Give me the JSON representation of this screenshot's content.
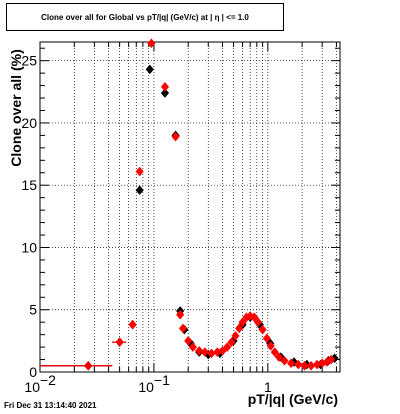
{
  "chart_data": {
    "type": "scatter",
    "title": "Clone  over all for Global vs pT/|q| (GeV/c) at |  η  | <= 1.0",
    "xlabel": "pT/|q| (GeV/c)",
    "ylabel": "Clone  over all (%)",
    "x_scale": "log",
    "xlim": [
      0.01,
      4.3
    ],
    "ylim": [
      0,
      26.5
    ],
    "grid": true,
    "y_ticks": [
      {
        "value": 0,
        "label": "0"
      },
      {
        "value": 5,
        "label": "5"
      },
      {
        "value": 10,
        "label": "10"
      },
      {
        "value": 15,
        "label": "15"
      },
      {
        "value": 20,
        "label": "20"
      },
      {
        "value": 25,
        "label": "25"
      }
    ],
    "x_ticks": [
      {
        "value": 0.01,
        "label": "10",
        "sup": "−2"
      },
      {
        "value": 0.1,
        "label": "10",
        "sup": "−1"
      },
      {
        "value": 1,
        "label": "1",
        "sup": ""
      }
    ],
    "series": [
      {
        "color": "#000000",
        "marker": "diamond",
        "points": [
          {
            "x": 0.0265,
            "y": 0.5,
            "xlo": 0.01,
            "xhi": 0.043
          },
          {
            "x": 0.05,
            "y": 2.4,
            "xlo": 0.043,
            "xhi": 0.057
          },
          {
            "x": 0.065,
            "y": 3.8
          },
          {
            "x": 0.075,
            "y": 14.6
          },
          {
            "x": 0.092,
            "y": 24.3
          },
          {
            "x": 0.125,
            "y": 22.4
          },
          {
            "x": 0.155,
            "y": 19.0
          },
          {
            "x": 0.17,
            "y": 4.9
          },
          {
            "x": 0.185,
            "y": 3.4
          },
          {
            "x": 0.21,
            "y": 2.3
          },
          {
            "x": 0.25,
            "y": 1.6
          },
          {
            "x": 0.3,
            "y": 1.4
          },
          {
            "x": 0.38,
            "y": 1.5
          },
          {
            "x": 0.5,
            "y": 2.5
          },
          {
            "x": 0.6,
            "y": 3.8
          },
          {
            "x": 0.7,
            "y": 4.4
          },
          {
            "x": 0.85,
            "y": 3.8
          },
          {
            "x": 1.05,
            "y": 2.3
          },
          {
            "x": 1.3,
            "y": 1.2
          },
          {
            "x": 1.7,
            "y": 0.8
          },
          {
            "x": 2.2,
            "y": 0.6
          },
          {
            "x": 2.9,
            "y": 0.6
          },
          {
            "x": 3.4,
            "y": 0.9
          },
          {
            "x": 3.85,
            "y": 1.1
          }
        ]
      },
      {
        "color": "#ff0000",
        "marker": "diamond",
        "points": [
          {
            "x": 0.0265,
            "y": 0.5,
            "xlo": 0.01,
            "xhi": 0.043
          },
          {
            "x": 0.05,
            "y": 2.4,
            "xlo": 0.043,
            "xhi": 0.057
          },
          {
            "x": 0.065,
            "y": 3.8
          },
          {
            "x": 0.075,
            "y": 16.1
          },
          {
            "x": 0.095,
            "y": 26.4
          },
          {
            "x": 0.125,
            "y": 22.9
          },
          {
            "x": 0.155,
            "y": 18.9
          },
          {
            "x": 0.17,
            "y": 4.6
          },
          {
            "x": 0.18,
            "y": 3.5
          },
          {
            "x": 0.2,
            "y": 2.5
          },
          {
            "x": 0.22,
            "y": 2.0
          },
          {
            "x": 0.25,
            "y": 1.7
          },
          {
            "x": 0.28,
            "y": 1.6
          },
          {
            "x": 0.32,
            "y": 1.5
          },
          {
            "x": 0.36,
            "y": 1.6
          },
          {
            "x": 0.4,
            "y": 1.7
          },
          {
            "x": 0.44,
            "y": 2.0
          },
          {
            "x": 0.48,
            "y": 2.4
          },
          {
            "x": 0.52,
            "y": 2.9
          },
          {
            "x": 0.56,
            "y": 3.5
          },
          {
            "x": 0.6,
            "y": 4.0
          },
          {
            "x": 0.65,
            "y": 4.4
          },
          {
            "x": 0.7,
            "y": 4.5
          },
          {
            "x": 0.76,
            "y": 4.4
          },
          {
            "x": 0.82,
            "y": 4.0
          },
          {
            "x": 0.9,
            "y": 3.4
          },
          {
            "x": 0.98,
            "y": 2.7
          },
          {
            "x": 1.06,
            "y": 2.1
          },
          {
            "x": 1.15,
            "y": 1.6
          },
          {
            "x": 1.25,
            "y": 1.2
          },
          {
            "x": 1.4,
            "y": 0.9
          },
          {
            "x": 1.6,
            "y": 0.7
          },
          {
            "x": 1.85,
            "y": 0.6
          },
          {
            "x": 2.1,
            "y": 0.5
          },
          {
            "x": 2.4,
            "y": 0.5
          },
          {
            "x": 2.7,
            "y": 0.6
          },
          {
            "x": 3.0,
            "y": 0.7
          },
          {
            "x": 3.3,
            "y": 0.8
          },
          {
            "x": 3.6,
            "y": 1.0
          }
        ]
      }
    ]
  },
  "footer": {
    "timestamp": "Fri Dec 31 13:14:40 2021"
  }
}
